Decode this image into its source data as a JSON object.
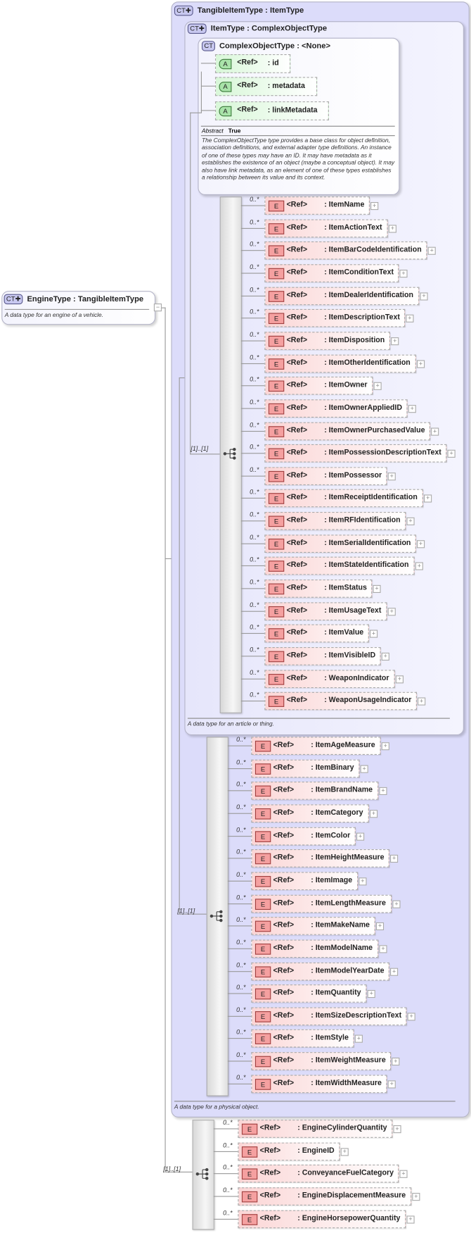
{
  "engine_type": {
    "title": "EngineType : TangibleItemType",
    "badge": "CT",
    "description": "A data type for an engine of a vehicle."
  },
  "tangible_item_type": {
    "title": "TangibleItemType : ItemType",
    "badge": "CT",
    "description": "A data type for a physical object."
  },
  "item_type": {
    "title": "ItemType : ComplexObjectType",
    "badge": "CT",
    "description": "A data type for an article or thing."
  },
  "complex_object_type": {
    "title": "ComplexObjectType : <None>",
    "badge": "CT",
    "attributes": [
      {
        "badge": "A",
        "ref": "<Ref>",
        "name": ": id"
      },
      {
        "badge": "A",
        "ref": "<Ref>",
        "name": ": metadata"
      },
      {
        "badge": "A",
        "ref": "<Ref>",
        "name": ": linkMetadata"
      }
    ],
    "abstract_label": "Abstract",
    "abstract_value": "True",
    "description": "The ComplexObjectType type provides a base class for object definition, association definitions, and external adapter type definitions. An instance of one of these types may have an ID. It may have metadata as it establishes the existence of an object (maybe a conceptual object). It may also have link metadata, as an element of one of these types establishes a relationship between its value and its context."
  },
  "sequence_multiplicity": "[1]..[1]",
  "element_multiplicity": "0..*",
  "element_badge": "E",
  "element_ref": "<Ref>",
  "item_type_elements": [
    ": ItemName",
    ": ItemActionText",
    ": ItemBarCodeIdentification",
    ": ItemConditionText",
    ": ItemDealerIdentification",
    ": ItemDescriptionText",
    ": ItemDisposition",
    ": ItemOtherIdentification",
    ": ItemOwner",
    ": ItemOwnerAppliedID",
    ": ItemOwnerPurchasedValue",
    ": ItemPossessionDescriptionText",
    ": ItemPossessor",
    ": ItemReceiptIdentification",
    ": ItemRFIdentification",
    ": ItemSerialIdentification",
    ": ItemStateIdentification",
    ": ItemStatus",
    ": ItemUsageText",
    ": ItemValue",
    ": ItemVisibleID",
    ": WeaponIndicator",
    ": WeaponUsageIndicator"
  ],
  "tangible_item_elements": [
    ": ItemAgeMeasure",
    ": ItemBinary",
    ": ItemBrandName",
    ": ItemCategory",
    ": ItemColor",
    ": ItemHeightMeasure",
    ": ItemImage",
    ": ItemLengthMeasure",
    ": ItemMakeName",
    ": ItemModelName",
    ": ItemModelYearDate",
    ": ItemQuantity",
    ": ItemSizeDescriptionText",
    ": ItemStyle",
    ": ItemWeightMeasure",
    ": ItemWidthMeasure"
  ],
  "engine_elements": [
    ": EngineCylinderQuantity",
    ": EngineID",
    ": ConveyanceFuelCategory",
    ": EngineDisplacementMeasure",
    ": EngineHorsepowerQuantity"
  ],
  "colors": {
    "complex_type": "#dcdcfa",
    "element": "#fbd6d6",
    "attribute": "#d8f7d8"
  }
}
